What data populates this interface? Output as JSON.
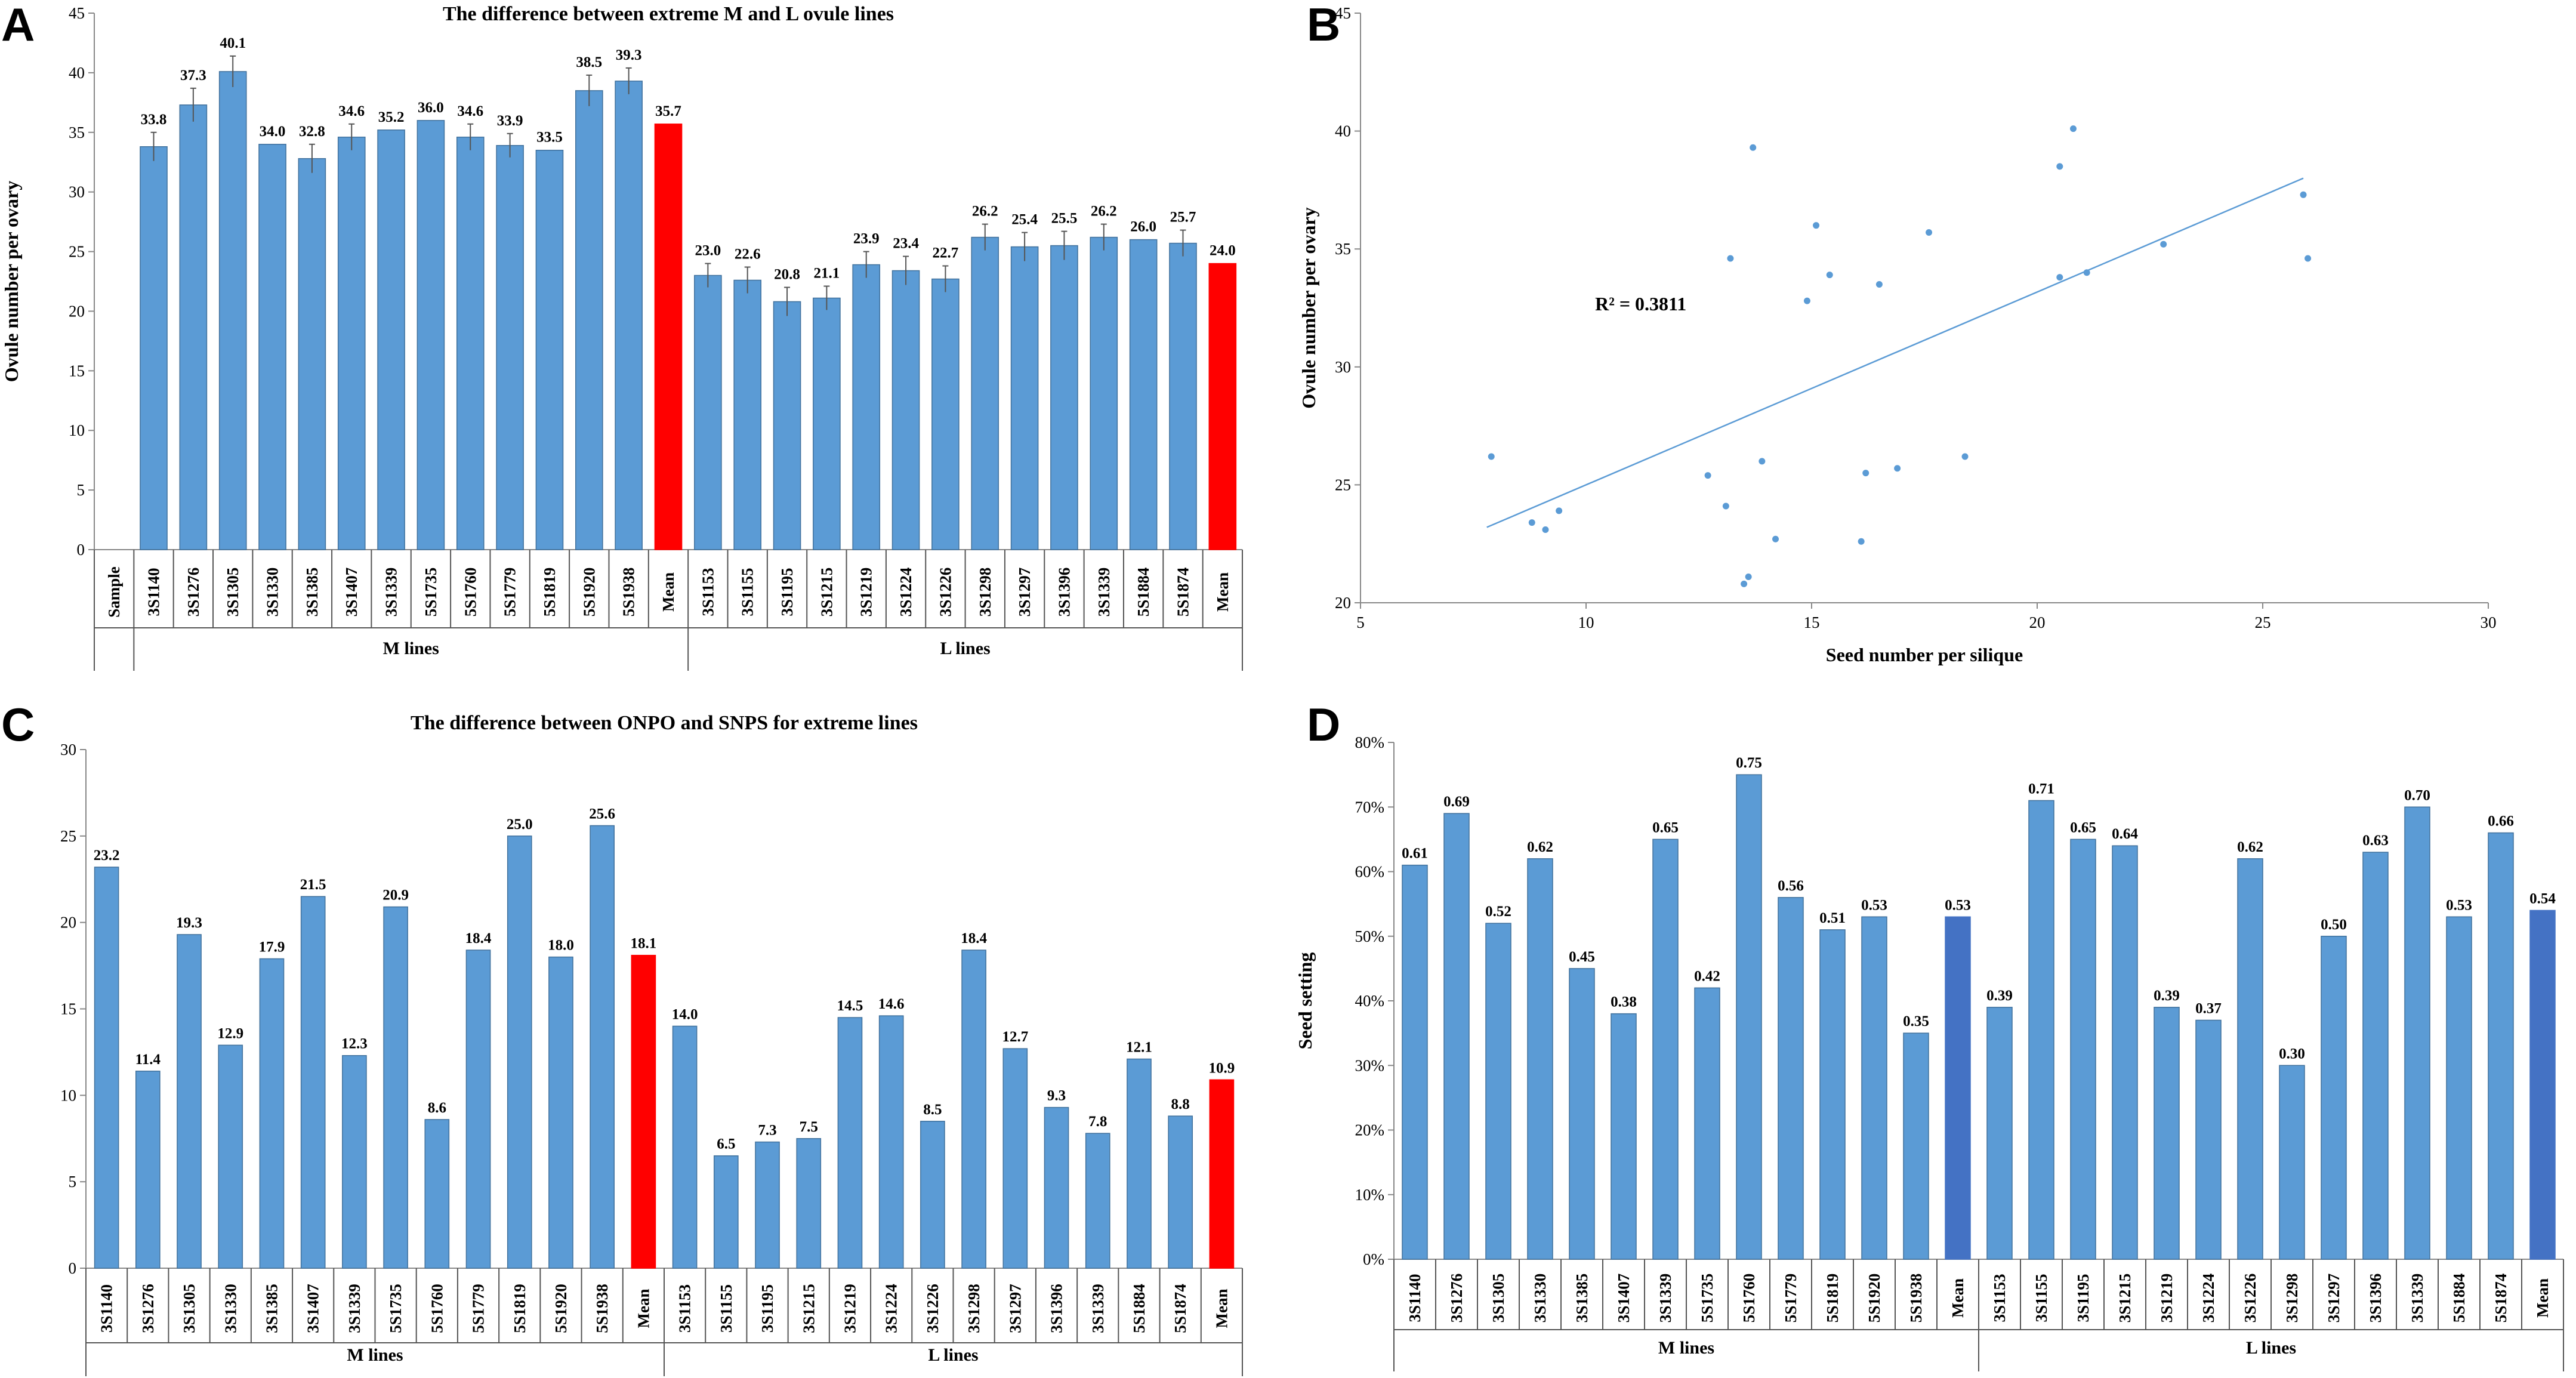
{
  "chart_data": [
    {
      "panel": "A",
      "type": "bar",
      "title": "The difference between extreme M and L ovule lines",
      "xlabel": "",
      "ylabel": "Ovule number per ovary",
      "ylim": [
        0,
        45
      ],
      "yticks": [
        0,
        5,
        10,
        15,
        20,
        25,
        30,
        35,
        40,
        45
      ],
      "first_label": "Sample",
      "categories": [
        "3S1140",
        "3S1276",
        "3S1305",
        "3S1330",
        "3S1385",
        "3S1407",
        "3S1339",
        "5S1735",
        "5S1760",
        "5S1779",
        "5S1819",
        "5S1920",
        "5S1938",
        "Mean",
        "3S1153",
        "3S1155",
        "3S1195",
        "3S1215",
        "3S1219",
        "3S1224",
        "3S1226",
        "3S1298",
        "3S1297",
        "3S1396",
        "3S1339",
        "5S1884",
        "5S1874",
        "Mean"
      ],
      "values": [
        33.8,
        37.3,
        40.1,
        34.0,
        32.8,
        34.6,
        35.2,
        36.0,
        34.6,
        33.9,
        33.5,
        38.5,
        39.3,
        35.7,
        23.0,
        22.6,
        20.8,
        21.1,
        23.9,
        23.4,
        22.7,
        26.2,
        25.4,
        25.5,
        26.2,
        26.0,
        25.7,
        24.0
      ],
      "labels": [
        "33.8",
        "37.3",
        "40.1",
        "34.0",
        "32.8",
        "34.6",
        "35.2",
        "36.0",
        "34.6",
        "33.9",
        "33.5",
        "38.5",
        "39.3",
        "35.7",
        "23.0",
        "22.6",
        "20.8",
        "21.1",
        "23.9",
        "23.4",
        "22.7",
        "26.2",
        "25.4",
        "25.5",
        "26.2",
        "26.0",
        "25.7",
        "24.0"
      ],
      "errors": [
        1.2,
        1.4,
        1.3,
        0,
        1.2,
        1.1,
        0,
        0,
        1.1,
        1.0,
        0,
        1.3,
        1.1,
        0,
        1.0,
        1.1,
        1.2,
        1.0,
        1.1,
        1.2,
        1.1,
        1.1,
        1.2,
        1.2,
        1.1,
        0,
        1.1,
        0
      ],
      "highlight": [
        13,
        27
      ],
      "bar_color": "#5b9bd5",
      "highlight_color": "#ff0000",
      "groups": [
        {
          "name": "M lines",
          "from": 0,
          "to": 13
        },
        {
          "name": "L lines",
          "from": 14,
          "to": 27
        }
      ]
    },
    {
      "panel": "B",
      "type": "scatter",
      "title": "",
      "xlabel": "Seed number per silique",
      "ylabel": "Ovule number per ovary",
      "xlim": [
        5,
        30
      ],
      "ylim": [
        20,
        45
      ],
      "xticks": [
        5,
        10,
        15,
        20,
        25,
        30
      ],
      "yticks": [
        20,
        25,
        30,
        35,
        40,
        45
      ],
      "annotation": "R² = 0.3811",
      "trendline": {
        "x": [
          7.8,
          25.9
        ],
        "y": [
          23.2,
          38.0
        ]
      },
      "points": [
        [
          7.9,
          26.2
        ],
        [
          8.8,
          23.4
        ],
        [
          9.1,
          23.1
        ],
        [
          9.4,
          23.9
        ],
        [
          12.7,
          25.4
        ],
        [
          13.1,
          24.1
        ],
        [
          13.2,
          34.6
        ],
        [
          13.5,
          20.8
        ],
        [
          13.6,
          21.1
        ],
        [
          13.7,
          39.3
        ],
        [
          13.9,
          26.0
        ],
        [
          14.2,
          22.7
        ],
        [
          14.9,
          32.8
        ],
        [
          15.1,
          36.0
        ],
        [
          15.4,
          33.9
        ],
        [
          16.1,
          22.6
        ],
        [
          16.2,
          25.5
        ],
        [
          16.5,
          33.5
        ],
        [
          16.9,
          25.7
        ],
        [
          17.6,
          35.7
        ],
        [
          18.4,
          26.2
        ],
        [
          20.5,
          38.5
        ],
        [
          20.5,
          33.8
        ],
        [
          20.8,
          40.1
        ],
        [
          21.1,
          34.0
        ],
        [
          22.8,
          35.2
        ],
        [
          25.9,
          37.3
        ],
        [
          26.0,
          34.6
        ]
      ],
      "point_color": "#5b9bd5"
    },
    {
      "panel": "C",
      "type": "bar",
      "title": "The difference between ONPO and SNPS for extreme lines",
      "xlabel": "",
      "ylabel": "",
      "ylim": [
        0,
        30
      ],
      "yticks": [
        0,
        5,
        10,
        15,
        20,
        25,
        30
      ],
      "categories": [
        "3S1140",
        "3S1276",
        "3S1305",
        "3S1330",
        "3S1385",
        "3S1407",
        "3S1339",
        "5S1735",
        "5S1760",
        "5S1779",
        "5S1819",
        "5S1920",
        "5S1938",
        "Mean",
        "3S1153",
        "3S1155",
        "3S1195",
        "3S1215",
        "3S1219",
        "3S1224",
        "3S1226",
        "3S1298",
        "3S1297",
        "3S1396",
        "3S1339",
        "5S1884",
        "5S1874",
        "Mean"
      ],
      "values": [
        23.2,
        11.4,
        19.3,
        12.9,
        17.9,
        21.5,
        12.3,
        20.9,
        8.6,
        18.4,
        25.0,
        18.0,
        25.6,
        18.1,
        14.0,
        6.5,
        7.3,
        7.5,
        14.5,
        14.6,
        8.5,
        18.4,
        12.7,
        9.3,
        7.8,
        12.1,
        8.8,
        10.9
      ],
      "labels": [
        "23.2",
        "11.4",
        "19.3",
        "12.9",
        "17.9",
        "21.5",
        "12.3",
        "20.9",
        "8.6",
        "18.4",
        "25.0",
        "18.0",
        "25.6",
        "18.1",
        "14.0",
        "6.5",
        "7.3",
        "7.5",
        "14.5",
        "14.6",
        "8.5",
        "18.4",
        "12.7",
        "9.3",
        "7.8",
        "12.1",
        "8.8",
        "10.9"
      ],
      "highlight": [
        13,
        27
      ],
      "bar_color": "#5b9bd5",
      "highlight_color": "#ff0000",
      "groups": [
        {
          "name": "M lines",
          "from": 0,
          "to": 13
        },
        {
          "name": "L lines",
          "from": 14,
          "to": 27
        }
      ]
    },
    {
      "panel": "D",
      "type": "bar",
      "title": "",
      "xlabel": "",
      "ylabel": "Seed setting",
      "ylim": [
        0,
        0.8
      ],
      "yticks": [
        0,
        0.1,
        0.2,
        0.3,
        0.4,
        0.5,
        0.6,
        0.7,
        0.8
      ],
      "ytick_labels": [
        "0%",
        "10%",
        "20%",
        "30%",
        "40%",
        "50%",
        "60%",
        "70%",
        "80%"
      ],
      "categories": [
        "3S1140",
        "3S1276",
        "3S1305",
        "3S1330",
        "3S1385",
        "3S1407",
        "3S1339",
        "5S1735",
        "5S1760",
        "5S1779",
        "5S1819",
        "5S1920",
        "5S1938",
        "Mean",
        "3S1153",
        "3S1155",
        "3S1195",
        "3S1215",
        "3S1219",
        "3S1224",
        "3S1226",
        "3S1298",
        "3S1297",
        "3S1396",
        "3S1339",
        "5S1884",
        "5S1874",
        "Mean"
      ],
      "values": [
        0.61,
        0.69,
        0.52,
        0.62,
        0.45,
        0.38,
        0.65,
        0.42,
        0.75,
        0.56,
        0.51,
        0.53,
        0.35,
        0.53,
        0.39,
        0.71,
        0.65,
        0.64,
        0.39,
        0.37,
        0.62,
        0.3,
        0.5,
        0.63,
        0.7,
        0.53,
        0.66,
        0.54
      ],
      "labels": [
        "0.61",
        "0.69",
        "0.52",
        "0.62",
        "0.45",
        "0.38",
        "0.65",
        "0.42",
        "0.75",
        "0.56",
        "0.51",
        "0.53",
        "0.35",
        "0.53",
        "0.39",
        "0.71",
        "0.65",
        "0.64",
        "0.39",
        "0.37",
        "0.62",
        "0.30",
        "0.50",
        "0.63",
        "0.70",
        "0.53",
        "0.66",
        "0.54"
      ],
      "highlight": [
        13,
        27
      ],
      "bar_color": "#5b9bd5",
      "highlight_color": "#4472c4",
      "groups": [
        {
          "name": "M lines",
          "from": 0,
          "to": 13
        },
        {
          "name": "L lines",
          "from": 14,
          "to": 27
        }
      ]
    }
  ],
  "panels": {
    "a": "A",
    "b": "B",
    "c": "C",
    "d": "D"
  }
}
